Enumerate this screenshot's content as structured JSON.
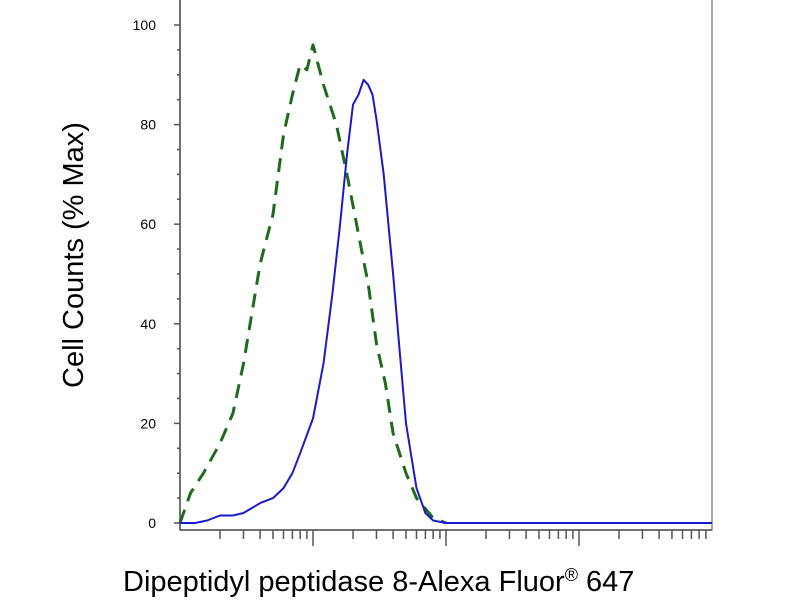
{
  "chart_data": {
    "type": "line",
    "title": "",
    "xlabel": "Dipeptidyl peptidase 8-Alexa Fluor",
    "xlabel_superscript": "®",
    "xlabel_suffix": " 647",
    "ylabel": "Cell Counts (% Max)",
    "xscale": "log",
    "xlim": [
      1,
      10000
    ],
    "ylim": [
      0,
      100
    ],
    "y_ticks": [
      0,
      20,
      40,
      60,
      80,
      100
    ],
    "y_tick_labels": [
      "0",
      "20",
      "40",
      "60",
      "80",
      "100"
    ],
    "x_major_ticks": [
      10,
      100,
      1000
    ],
    "x_tick_labels": [],
    "grid": false,
    "legend": false,
    "series": [
      {
        "style": "dashed",
        "color": "#1e6b1e",
        "x": [
          1,
          1.2,
          1.5,
          2,
          2.5,
          3,
          4,
          5,
          6,
          7,
          8,
          9,
          10,
          12,
          15,
          18,
          22,
          26,
          30,
          35,
          40,
          50,
          60,
          80,
          100
        ],
        "y": [
          0,
          6,
          10,
          16,
          22,
          32,
          52,
          62,
          78,
          86,
          92,
          91,
          96,
          88,
          80,
          70,
          58,
          48,
          36,
          28,
          18,
          10,
          5,
          1,
          0
        ]
      },
      {
        "style": "solid",
        "color": "#1a1acc",
        "x": [
          1,
          1.3,
          1.6,
          2,
          2.5,
          3,
          4,
          5,
          6,
          7,
          8,
          10,
          12,
          14,
          16,
          18,
          20,
          22,
          24,
          26,
          28,
          30,
          34,
          40,
          45,
          50,
          60,
          70,
          80,
          100,
          200,
          1000,
          10000
        ],
        "y": [
          0,
          0,
          0.5,
          1.5,
          1.5,
          2,
          4,
          5,
          7,
          10,
          14,
          21,
          32,
          46,
          60,
          74,
          84,
          86,
          89,
          88,
          86,
          81,
          70,
          50,
          34,
          20,
          7,
          2,
          0.5,
          0,
          0,
          0,
          0
        ]
      }
    ]
  }
}
